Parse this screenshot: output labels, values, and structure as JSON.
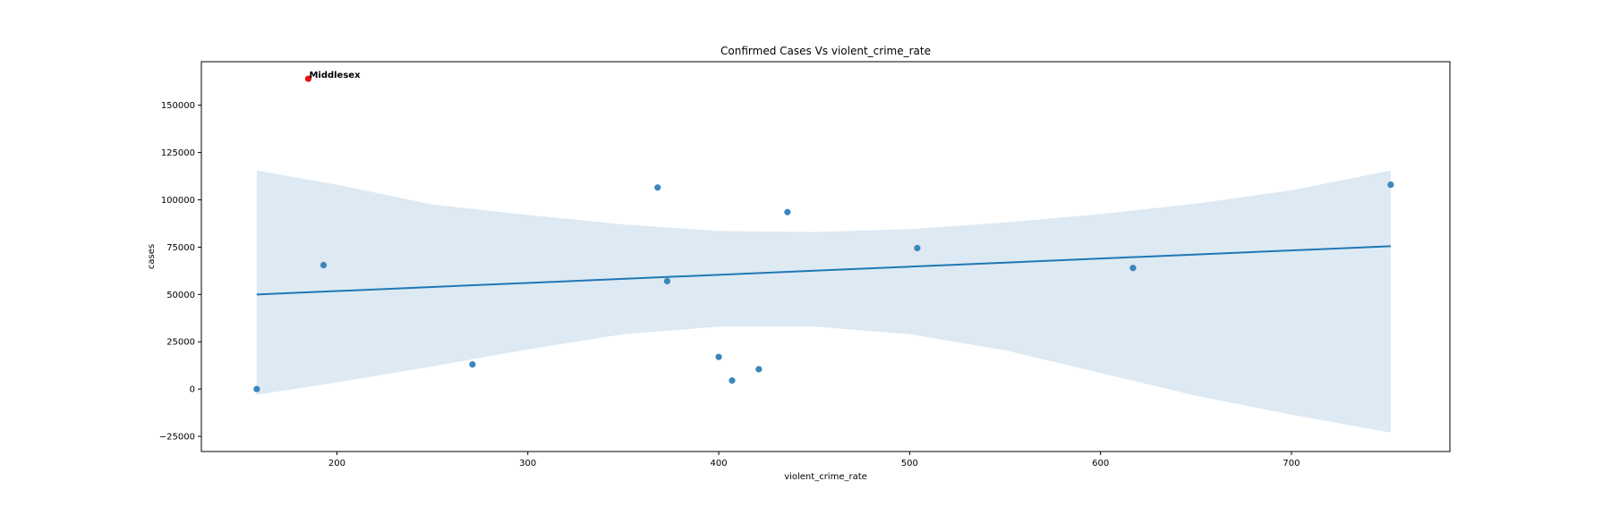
{
  "chart_data": {
    "type": "scatter",
    "title": "Confirmed Cases Vs violent_crime_rate",
    "xlabel": "violent_crime_rate",
    "ylabel": "cases",
    "xlim": [
      129,
      783
    ],
    "ylim": [
      -33000,
      173000
    ],
    "xticks": [
      200,
      300,
      400,
      500,
      600,
      700
    ],
    "yticks": [
      -25000,
      0,
      25000,
      50000,
      75000,
      100000,
      125000,
      150000
    ],
    "grid": false,
    "colors": {
      "points": "#3a87bd",
      "highlight": "#e8120c",
      "line": "#1f77b4",
      "band": "#dde9f3"
    },
    "points": [
      {
        "x": 158,
        "y": 0
      },
      {
        "x": 193,
        "y": 65500
      },
      {
        "x": 271,
        "y": 13000
      },
      {
        "x": 368,
        "y": 106500
      },
      {
        "x": 373,
        "y": 57000
      },
      {
        "x": 400,
        "y": 17000
      },
      {
        "x": 407,
        "y": 4500
      },
      {
        "x": 421,
        "y": 10500
      },
      {
        "x": 436,
        "y": 93500
      },
      {
        "x": 504,
        "y": 74500
      },
      {
        "x": 617,
        "y": 64000
      },
      {
        "x": 752,
        "y": 108000
      }
    ],
    "highlight": {
      "x": 185,
      "y": 164000,
      "label": "Middlesex"
    },
    "regression": {
      "x": [
        158,
        752
      ],
      "y": [
        50000,
        75500
      ]
    },
    "confidence_band": {
      "x": [
        158,
        200,
        250,
        300,
        350,
        400,
        450,
        500,
        550,
        600,
        650,
        700,
        752
      ],
      "upper": [
        115500,
        108000,
        97500,
        92000,
        87000,
        83500,
        83000,
        84500,
        88000,
        92500,
        98000,
        105000,
        115500
      ],
      "lower": [
        -3000,
        3500,
        12000,
        21000,
        29000,
        33000,
        33000,
        29000,
        20500,
        8500,
        -3500,
        -13500,
        -23000
      ]
    }
  }
}
